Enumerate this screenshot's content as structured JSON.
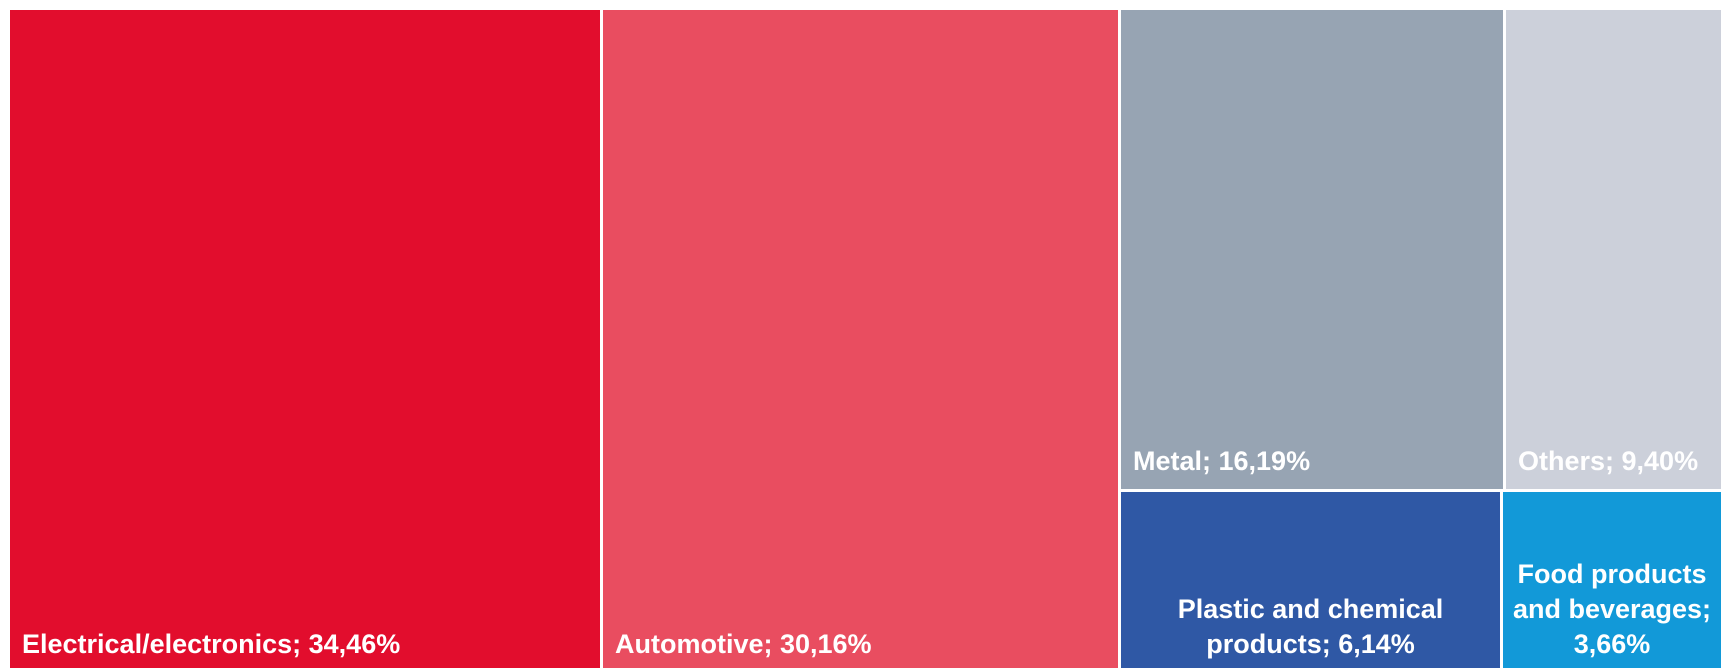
{
  "chart_data": {
    "type": "treemap",
    "series": [
      {
        "name": "Electrical/electronics",
        "value": 34.46,
        "label": "Electrical/electronics; 34,46%",
        "color": "#e20d2d"
      },
      {
        "name": "Automotive",
        "value": 30.16,
        "label": "Automotive; 30,16%",
        "color": "#e94d60"
      },
      {
        "name": "Metal",
        "value": 16.19,
        "label": "Metal; 16,19%",
        "color": "#97a4b3"
      },
      {
        "name": "Others",
        "value": 9.4,
        "label": "Others; 9,40%",
        "color": "#ccd0da"
      },
      {
        "name": "Plastic and chemical products",
        "value": 6.14,
        "label": "Plastic and chemical\nproducts; 6,14%",
        "color": "#2f58a5"
      },
      {
        "name": "Food products and beverages",
        "value": 3.66,
        "label": "Food products\nand beverages;\n3,66%",
        "color": "#1299d8"
      }
    ]
  }
}
